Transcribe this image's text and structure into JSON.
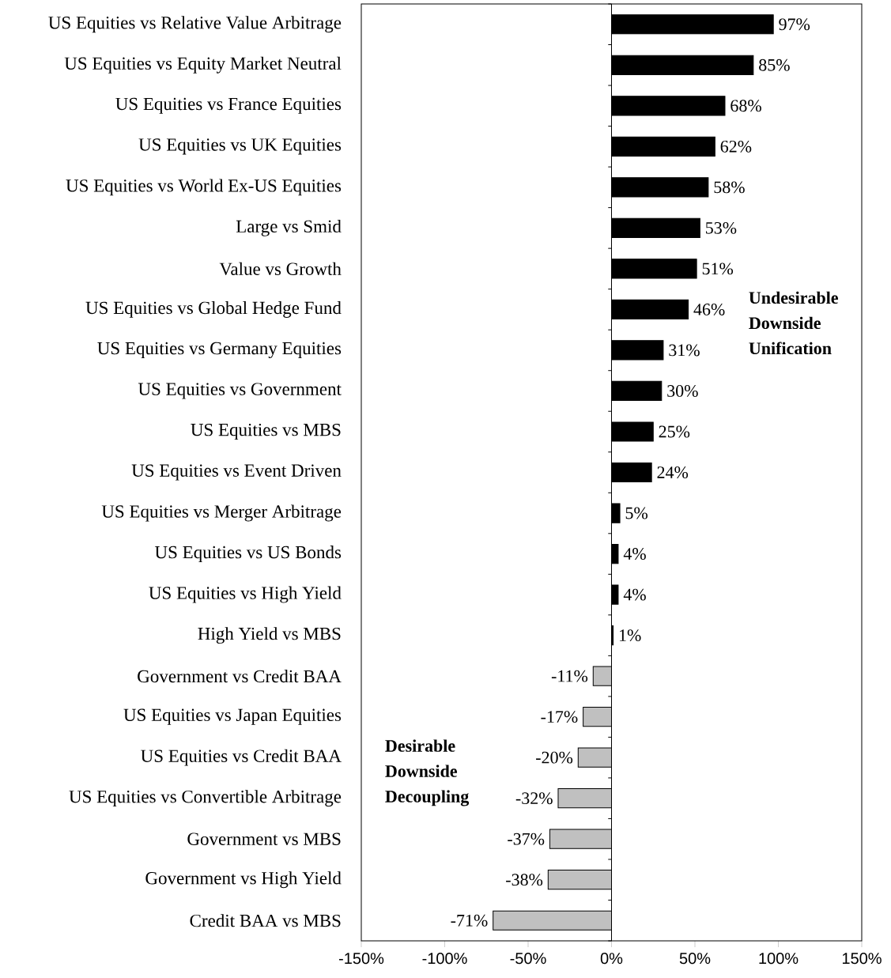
{
  "chart_data": {
    "type": "bar",
    "orientation": "horizontal",
    "categories": [
      "US Equities vs Relative Value Arbitrage",
      "US Equities vs Equity Market Neutral",
      "US Equities vs France Equities",
      "US Equities vs UK Equities",
      "US Equities vs World Ex-US Equities",
      "Large vs Smid",
      "Value vs Growth",
      "US Equities vs Global Hedge Fund",
      "US Equities vs Germany Equities",
      "US Equities vs Government",
      "US Equities vs MBS",
      "US Equities vs Event Driven",
      "US Equities vs Merger Arbitrage",
      "US Equities vs US Bonds",
      "US Equities vs High Yield",
      "High Yield vs MBS",
      "Government vs Credit BAA",
      "US Equities vs Japan Equities",
      "US Equities vs Credit BAA",
      "US Equities vs Convertible Arbitrage",
      "Government vs MBS",
      "Government vs High Yield",
      "Credit BAA vs MBS"
    ],
    "values": [
      97,
      85,
      68,
      62,
      58,
      53,
      51,
      46,
      31,
      30,
      25,
      24,
      5,
      4,
      4,
      1,
      -11,
      -17,
      -20,
      -32,
      -37,
      -38,
      -71
    ],
    "value_labels": [
      "97%",
      "85%",
      "68%",
      "62%",
      "58%",
      "53%",
      "51%",
      "46%",
      "31%",
      "30%",
      "25%",
      "24%",
      "5%",
      "4%",
      "4%",
      "1%",
      "-11%",
      "-17%",
      "-20%",
      "-32%",
      "-37%",
      "-38%",
      "-71%"
    ],
    "colors": [
      "#000000",
      "#000000",
      "#000000",
      "#000000",
      "#000000",
      "#000000",
      "#000000",
      "#000000",
      "#000000",
      "#000000",
      "#000000",
      "#000000",
      "#000000",
      "#000000",
      "#000000",
      "#000000",
      "#c0c0c0",
      "#c0c0c0",
      "#c0c0c0",
      "#c0c0c0",
      "#c0c0c0",
      "#c0c0c0",
      "#c0c0c0"
    ],
    "xlim": [
      -150,
      150
    ],
    "xticks": [
      {
        "value": -150,
        "label": "-150%"
      },
      {
        "value": -100,
        "label": "-100%"
      },
      {
        "value": -50,
        "label": "-50%"
      },
      {
        "value": 0,
        "label": "0%"
      },
      {
        "value": 50,
        "label": "50%"
      },
      {
        "value": 100,
        "label": "100%"
      },
      {
        "value": 150,
        "label": "150%"
      }
    ],
    "annotations": [
      "Undesirable Downside Unification",
      "Desirable Downside Decoupling"
    ]
  }
}
